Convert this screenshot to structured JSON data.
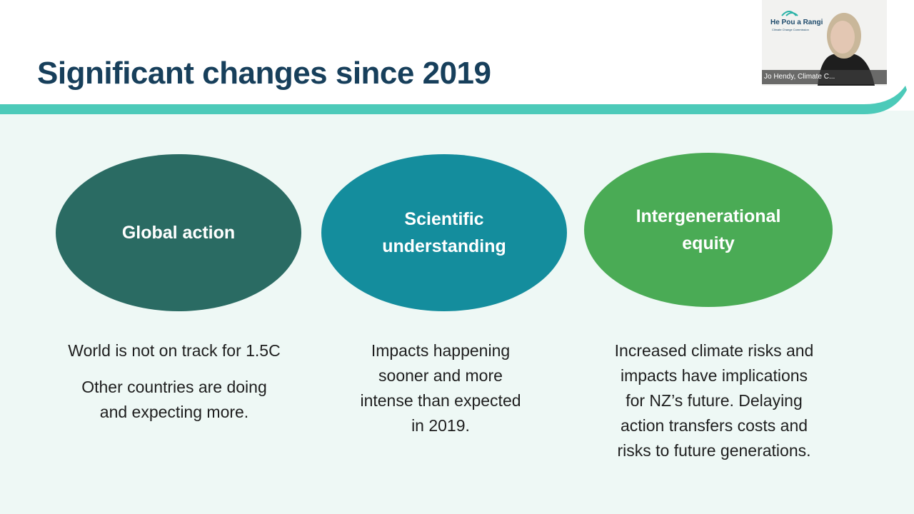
{
  "slide": {
    "title": "Significant changes since 2019",
    "columns": [
      {
        "heading": "Global action",
        "paragraphs": [
          [
            "World is not on track for 1.5C"
          ],
          [
            "Other countries are doing",
            "and expecting more."
          ]
        ]
      },
      {
        "heading": [
          "Scientific",
          "understanding"
        ],
        "paragraphs": [
          [
            "Impacts happening",
            "sooner and more",
            "intense than expected",
            "in 2019."
          ]
        ]
      },
      {
        "heading": [
          "Intergenerational",
          "equity"
        ],
        "paragraphs": [
          [
            "Increased climate risks and",
            "impacts have implications",
            "for NZ’s future. Delaying",
            "action transfers costs and",
            "risks to future generations."
          ]
        ]
      }
    ]
  },
  "video": {
    "logo_title": "He Pou a Rangi",
    "logo_subtitle": "Climate Change Commission",
    "participant": "Jo Hendy, Climate C..."
  }
}
